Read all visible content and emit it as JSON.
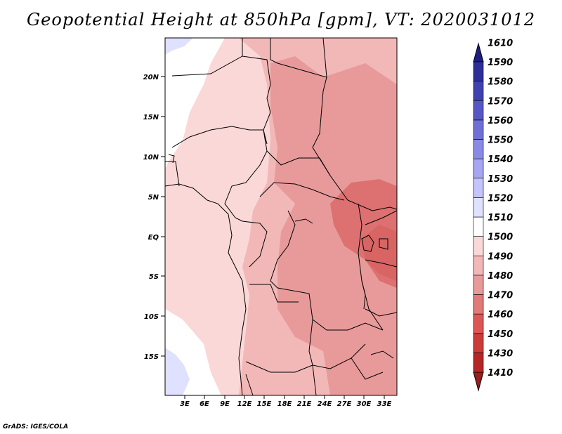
{
  "title": "Geopotential Height at 850hPa [gpm], VT: 2020031012",
  "credit": "GrADS: IGES/COLA",
  "map": {
    "lat_ticks": [
      "20N",
      "15N",
      "10N",
      "5N",
      "EQ",
      "5S",
      "10S",
      "15S"
    ],
    "lon_ticks": [
      "3E",
      "6E",
      "9E",
      "12E",
      "15E",
      "18E",
      "21E",
      "24E",
      "27E",
      "30E",
      "33E"
    ]
  },
  "colorbar": {
    "levels": [
      "1410",
      "1430",
      "1450",
      "1460",
      "1470",
      "1480",
      "1490",
      "1500",
      "1510",
      "1520",
      "1530",
      "1540",
      "1550",
      "1560",
      "1570",
      "1580",
      "1590",
      "1610"
    ],
    "colors": [
      "#9b1c1c",
      "#b52626",
      "#cc3a3a",
      "#dd5656",
      "#e27878",
      "#e89a9a",
      "#f2b8b8",
      "#fbd8d8",
      "#ffffff",
      "#e0e0ff",
      "#c4c4fb",
      "#a6a6f2",
      "#8a8ae6",
      "#6f6fd6",
      "#5656c4",
      "#4040b0",
      "#2e2e98",
      "#1e1e80"
    ]
  }
}
